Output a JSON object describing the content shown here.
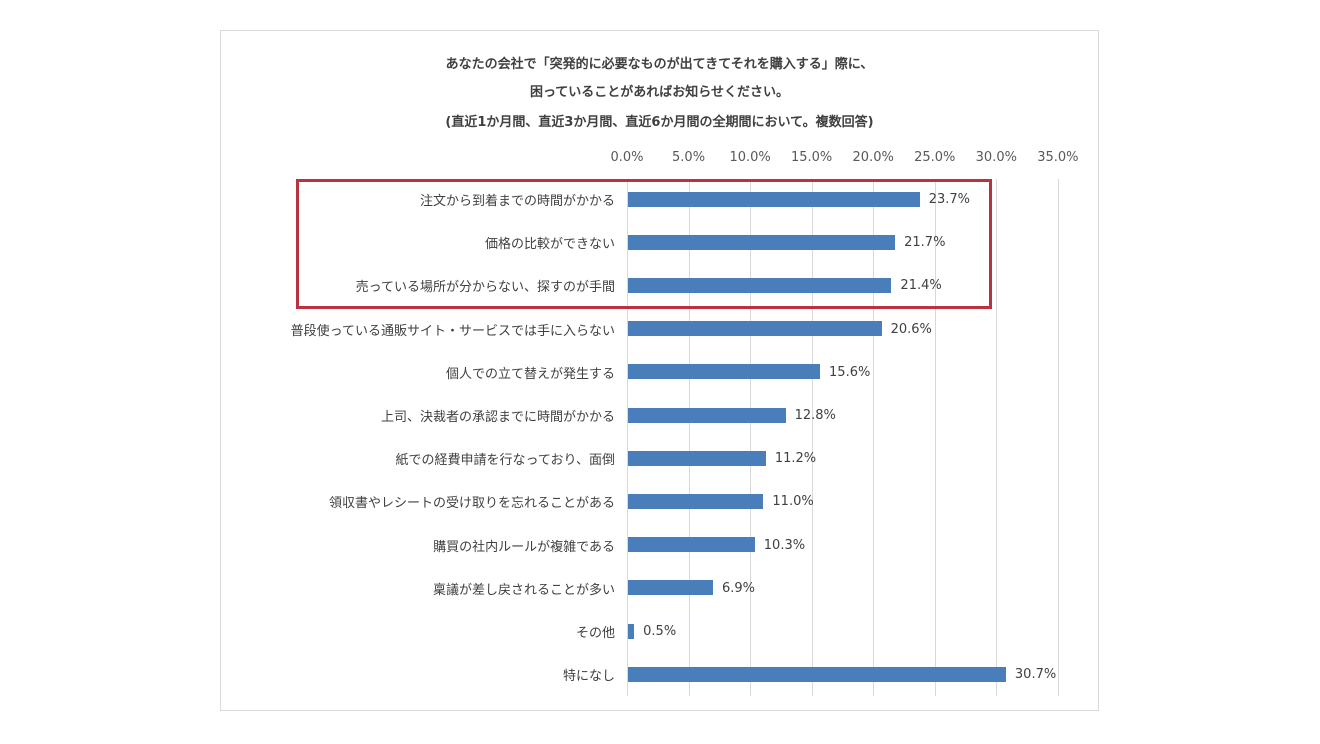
{
  "chart_data": {
    "type": "bar",
    "orientation": "horizontal",
    "title": "あなたの会社で「突発的に必要なものが出てきてそれを購入する」際に、",
    "title_lines": [
      "あなたの会社で「突発的に必要なものが出てきてそれを購入する」際に、",
      "困っていることがあればお知らせください。",
      "(直近1か月間、直近3か月間、直近6か月間の全期間において。複数回答)"
    ],
    "xlabel": "",
    "ylabel": "",
    "xlim": [
      0,
      35
    ],
    "x_ticks": [
      "0.0%",
      "5.0%",
      "10.0%",
      "15.0%",
      "20.0%",
      "25.0%",
      "30.0%",
      "35.0%"
    ],
    "x_tick_position": "top",
    "grid": true,
    "legend": null,
    "bar_color": "#4a7ebb",
    "highlight": {
      "color": "#b8323f",
      "categories": [
        "注文から到着までの時間がかかる",
        "価格の比較ができない",
        "売っている場所が分からない、探すのが手間"
      ]
    },
    "categories": [
      "注文から到着までの時間がかかる",
      "価格の比較ができない",
      "売っている場所が分からない、探すのが手間",
      "普段使っている通販サイト・サービスでは手に入らない",
      "個人での立て替えが発生する",
      "上司、決裁者の承認までに時間がかかる",
      "紙での経費申請を行なっており、面倒",
      "領収書やレシートの受け取りを忘れることがある",
      "購買の社内ルールが複雑である",
      "稟議が差し戻されることが多い",
      "その他",
      "特になし"
    ],
    "values": [
      23.7,
      21.7,
      21.4,
      20.6,
      15.6,
      12.8,
      11.2,
      11.0,
      10.3,
      6.9,
      0.5,
      30.7
    ],
    "value_labels": [
      "23.7%",
      "21.7%",
      "21.4%",
      "20.6%",
      "15.6%",
      "12.8%",
      "11.2%",
      "11.0%",
      "10.3%",
      "6.9%",
      "0.5%",
      "30.7%"
    ],
    "unit": "%"
  }
}
